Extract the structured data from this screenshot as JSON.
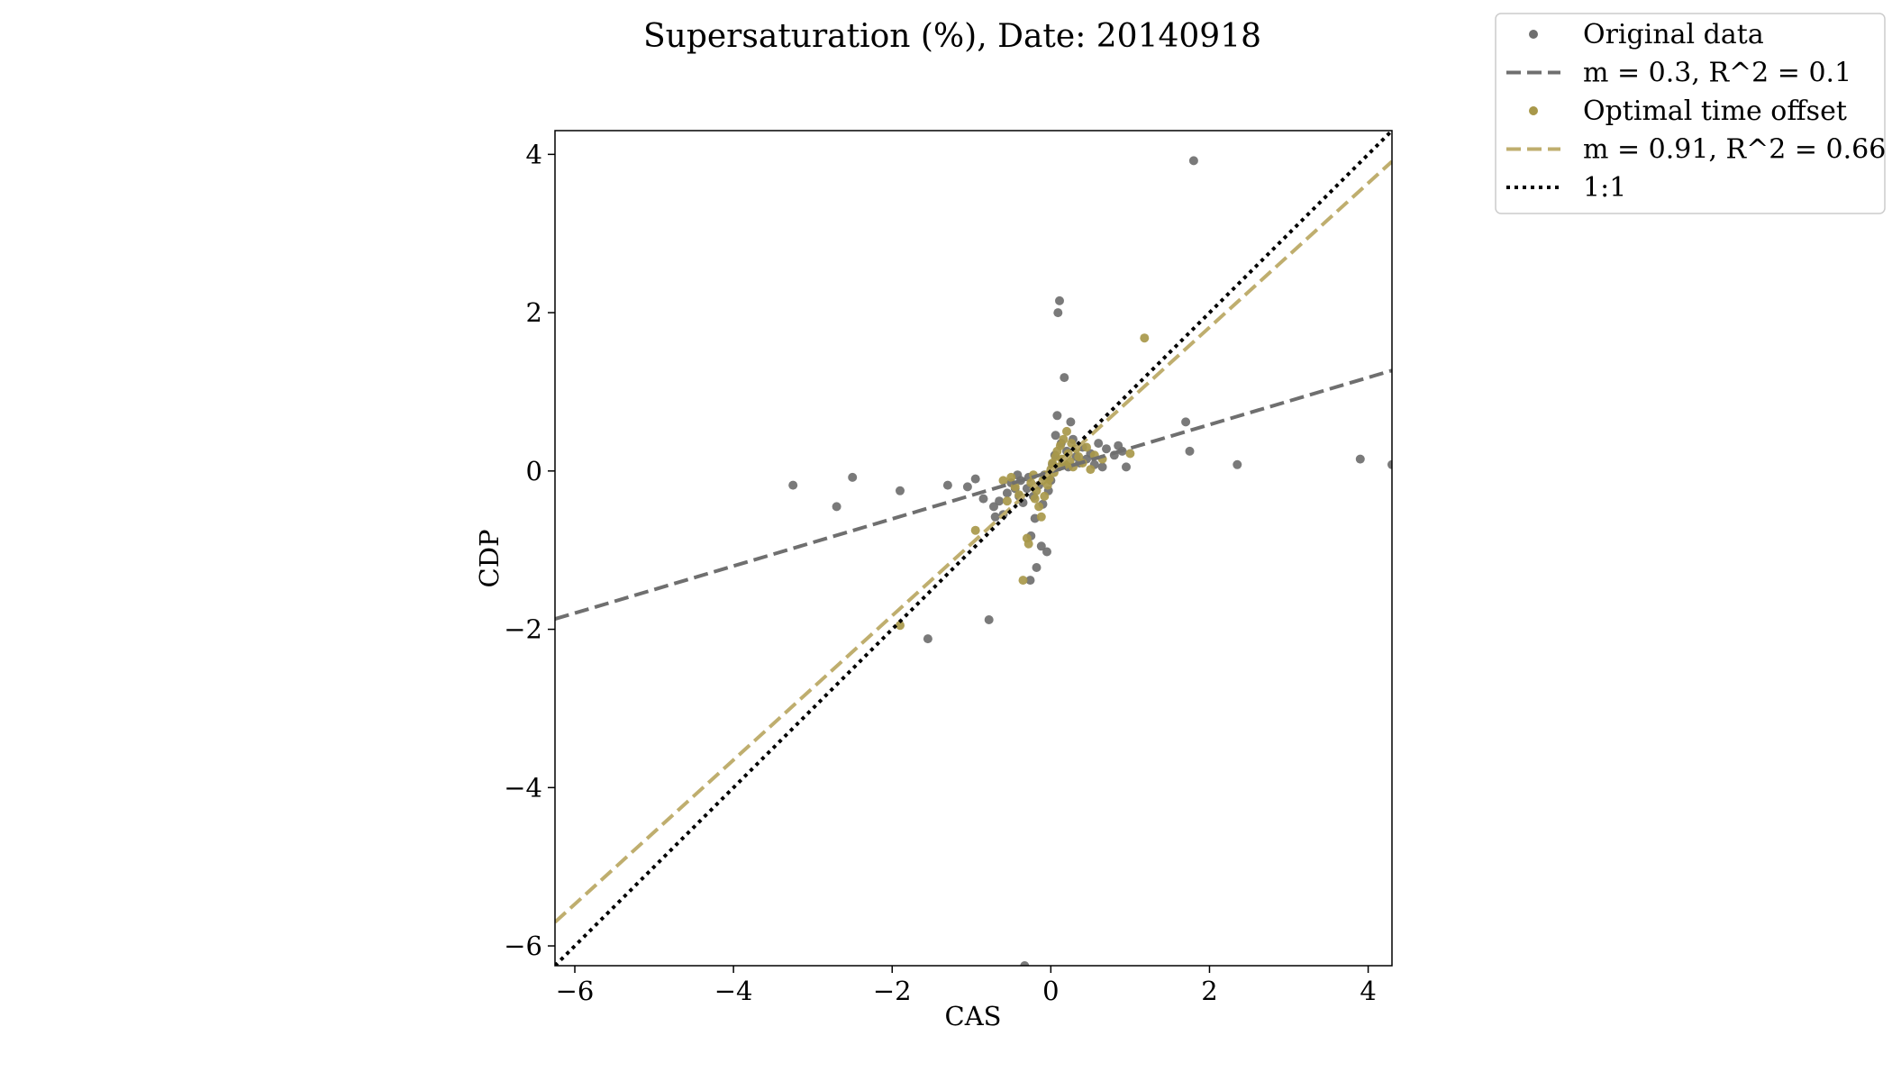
{
  "chart_data": {
    "type": "scatter",
    "title": "Supersaturation (%), Date: 20140918",
    "xlabel": "CAS",
    "ylabel": "CDP",
    "xlim": [
      -6.25,
      4.3
    ],
    "ylim": [
      -6.25,
      4.3
    ],
    "xticks": [
      -6,
      -4,
      -2,
      0,
      2,
      4
    ],
    "yticks": [
      -6,
      -4,
      -2,
      0,
      2,
      4
    ],
    "grid": false,
    "legend_position": "top-right outside",
    "series": [
      {
        "name": "Original data",
        "kind": "scatter",
        "color": "#6f6f6f",
        "points": [
          [
            -3.25,
            -0.18
          ],
          [
            -2.7,
            -0.45
          ],
          [
            -2.5,
            -0.08
          ],
          [
            -1.9,
            -0.25
          ],
          [
            -1.55,
            -2.12
          ],
          [
            -1.3,
            -0.18
          ],
          [
            -1.05,
            -0.2
          ],
          [
            -0.95,
            -0.1
          ],
          [
            -0.85,
            -0.35
          ],
          [
            -0.78,
            -1.88
          ],
          [
            -0.72,
            -0.45
          ],
          [
            -0.7,
            -0.58
          ],
          [
            -0.65,
            -0.38
          ],
          [
            -0.6,
            -0.55
          ],
          [
            -0.55,
            -0.28
          ],
          [
            -0.5,
            -0.15
          ],
          [
            -0.45,
            -0.22
          ],
          [
            -0.42,
            -0.05
          ],
          [
            -0.4,
            -0.32
          ],
          [
            -0.38,
            -0.12
          ],
          [
            -0.35,
            -0.4
          ],
          [
            -0.33,
            -6.25
          ],
          [
            -0.3,
            -0.22
          ],
          [
            -0.28,
            -0.08
          ],
          [
            -0.26,
            -1.38
          ],
          [
            -0.25,
            -0.82
          ],
          [
            -0.22,
            -0.32
          ],
          [
            -0.2,
            -0.6
          ],
          [
            -0.18,
            -1.22
          ],
          [
            -0.15,
            -0.18
          ],
          [
            -0.12,
            -0.95
          ],
          [
            -0.1,
            -0.42
          ],
          [
            -0.08,
            -0.05
          ],
          [
            -0.05,
            -1.02
          ],
          [
            -0.03,
            -0.25
          ],
          [
            0.0,
            -0.12
          ],
          [
            0.02,
            0.08
          ],
          [
            0.05,
            0.2
          ],
          [
            0.06,
            0.45
          ],
          [
            0.08,
            0.7
          ],
          [
            0.09,
            2.0
          ],
          [
            0.11,
            2.15
          ],
          [
            0.13,
            0.35
          ],
          [
            0.15,
            0.12
          ],
          [
            0.17,
            1.18
          ],
          [
            0.2,
            0.25
          ],
          [
            0.22,
            0.05
          ],
          [
            0.25,
            0.62
          ],
          [
            0.28,
            0.4
          ],
          [
            0.32,
            0.18
          ],
          [
            0.36,
            0.1
          ],
          [
            0.4,
            0.3
          ],
          [
            0.45,
            0.15
          ],
          [
            0.5,
            0.22
          ],
          [
            0.55,
            0.08
          ],
          [
            0.6,
            0.35
          ],
          [
            0.65,
            0.05
          ],
          [
            0.7,
            0.28
          ],
          [
            0.8,
            0.2
          ],
          [
            0.85,
            0.32
          ],
          [
            0.9,
            0.25
          ],
          [
            0.95,
            0.05
          ],
          [
            1.7,
            0.62
          ],
          [
            1.75,
            0.25
          ],
          [
            1.8,
            3.92
          ],
          [
            2.35,
            0.08
          ],
          [
            3.9,
            0.15
          ],
          [
            4.3,
            0.08
          ]
        ]
      },
      {
        "name": "m = 0.3, R^2 = 0.1",
        "kind": "line",
        "style": "dashed",
        "color": "#6f6f6f",
        "points": [
          [
            -6.25,
            -1.87
          ],
          [
            4.3,
            1.27
          ]
        ]
      },
      {
        "name": "Optimal time offset",
        "kind": "scatter",
        "color": "#a8984a",
        "points": [
          [
            -1.9,
            -1.95
          ],
          [
            -0.95,
            -0.75
          ],
          [
            -0.6,
            -0.12
          ],
          [
            -0.55,
            -0.38
          ],
          [
            -0.5,
            -0.08
          ],
          [
            -0.45,
            -0.2
          ],
          [
            -0.4,
            -0.3
          ],
          [
            -0.35,
            -1.38
          ],
          [
            -0.3,
            -0.85
          ],
          [
            -0.28,
            -0.92
          ],
          [
            -0.25,
            -0.15
          ],
          [
            -0.22,
            -0.05
          ],
          [
            -0.2,
            -0.35
          ],
          [
            -0.18,
            -0.25
          ],
          [
            -0.15,
            -0.45
          ],
          [
            -0.12,
            -0.58
          ],
          [
            -0.1,
            -0.12
          ],
          [
            -0.08,
            -0.32
          ],
          [
            -0.06,
            -0.05
          ],
          [
            -0.04,
            -0.18
          ],
          [
            -0.02,
            -0.1
          ],
          [
            0.0,
            0.02
          ],
          [
            0.02,
            0.1
          ],
          [
            0.04,
            -0.02
          ],
          [
            0.06,
            0.18
          ],
          [
            0.08,
            0.25
          ],
          [
            0.1,
            0.05
          ],
          [
            0.12,
            0.32
          ],
          [
            0.14,
            0.15
          ],
          [
            0.16,
            0.4
          ],
          [
            0.18,
            0.08
          ],
          [
            0.2,
            0.5
          ],
          [
            0.22,
            0.22
          ],
          [
            0.24,
            0.12
          ],
          [
            0.26,
            0.35
          ],
          [
            0.28,
            0.05
          ],
          [
            0.32,
            0.28
          ],
          [
            0.35,
            0.18
          ],
          [
            0.4,
            0.1
          ],
          [
            0.45,
            0.3
          ],
          [
            0.5,
            0.02
          ],
          [
            0.55,
            0.2
          ],
          [
            0.65,
            0.15
          ],
          [
            1.0,
            0.22
          ],
          [
            1.18,
            1.68
          ]
        ]
      },
      {
        "name": "m = 0.91, R^2 = 0.66",
        "kind": "line",
        "style": "dashed",
        "color": "#bfae6e",
        "points": [
          [
            -6.25,
            -5.7
          ],
          [
            4.3,
            3.91
          ]
        ]
      },
      {
        "name": "1:1",
        "kind": "line",
        "style": "dotted",
        "color": "#000000",
        "points": [
          [
            -6.25,
            -6.25
          ],
          [
            4.3,
            4.3
          ]
        ]
      }
    ]
  }
}
